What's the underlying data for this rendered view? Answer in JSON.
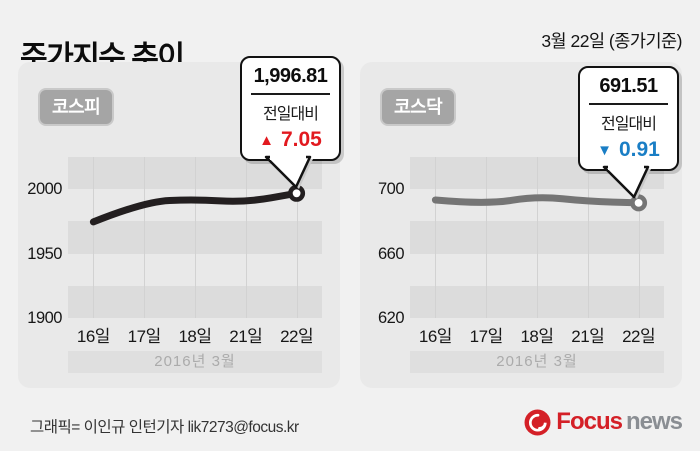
{
  "header": {
    "title": "주가지수 추이",
    "date_note": "3월 22일 (종가기준)"
  },
  "colors": {
    "kospi_line": "#231f20",
    "kosdaq_line": "#757575",
    "up_red": "#e2191f",
    "down_blue": "#1a7ec5",
    "panel_bg": "#e9e9e9",
    "band_dark": "#dcdcdc"
  },
  "chart_data": [
    {
      "type": "line",
      "title": "코스피",
      "categories": [
        "16일",
        "17일",
        "18일",
        "21일",
        "22일"
      ],
      "values": [
        1974.6,
        1990.4,
        1992.1,
        1989.8,
        1996.81
      ],
      "yticks": [
        2000,
        1950,
        1900
      ],
      "ylim": [
        1900,
        2025
      ],
      "xlabel_caption": "2016년 3월",
      "line_color": "#231f20",
      "grid": "horizontal-bands",
      "legend": "none",
      "callout": {
        "value": "1,996.81",
        "label": "전일대비",
        "direction": "up",
        "arrow": "▲",
        "delta": "7.05",
        "delta_color": "#e2191f"
      }
    },
    {
      "type": "line",
      "title": "코스닥",
      "categories": [
        "16일",
        "17일",
        "18일",
        "21일",
        "22일"
      ],
      "values": [
        693.3,
        690.5,
        695.7,
        692.4,
        691.51
      ],
      "yticks": [
        700,
        660,
        620
      ],
      "ylim": [
        620,
        720
      ],
      "xlabel_caption": "2016년 3월",
      "line_color": "#757575",
      "grid": "horizontal-bands",
      "legend": "none",
      "callout": {
        "value": "691.51",
        "label": "전일대비",
        "direction": "down",
        "arrow": "▼",
        "delta": "0.91",
        "delta_color": "#1a7ec5"
      }
    }
  ],
  "footer": {
    "credit": "그래픽= 이인규 인턴기자 lik7273@focus.kr",
    "logo_primary": "Focus",
    "logo_secondary": "news"
  }
}
